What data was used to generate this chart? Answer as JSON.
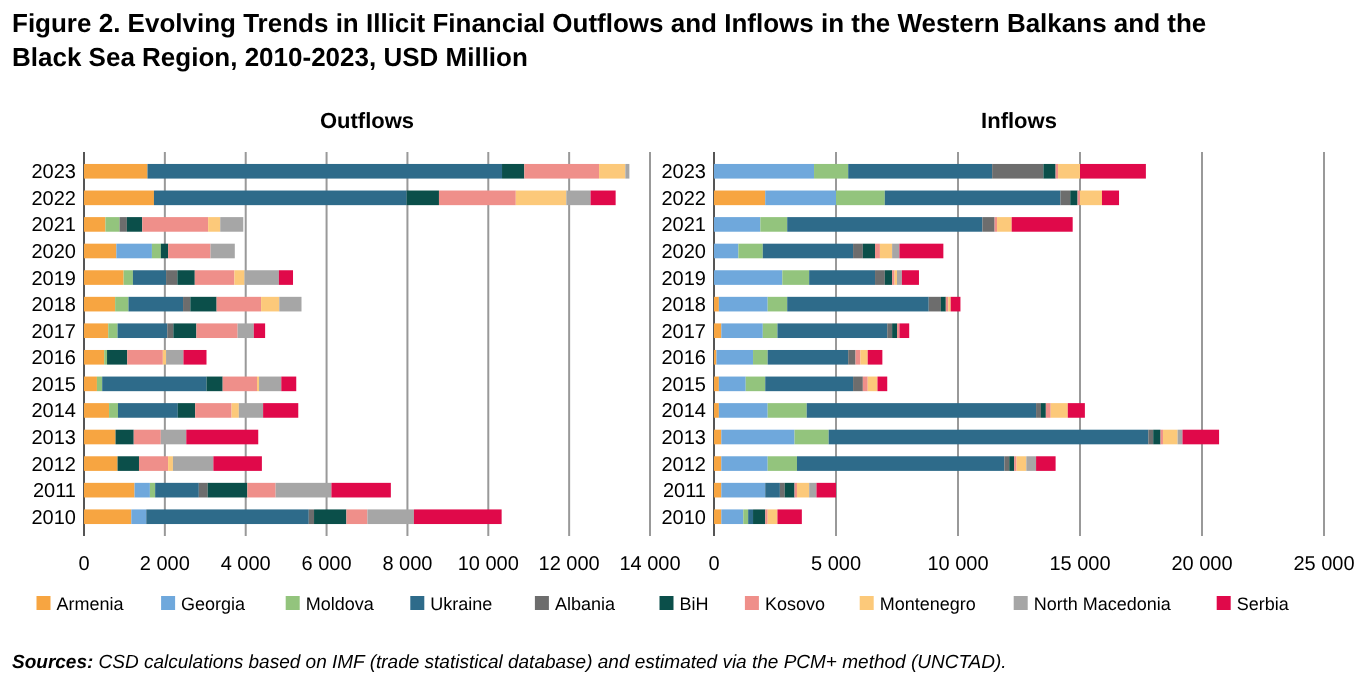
{
  "chart_data": [
    {
      "type": "bar",
      "orientation": "horizontal",
      "stacked": true,
      "title": "Figure 2.  Evolving Trends in Illicit Financial Outflows and Inflows in the Western Balkans and the Black Sea Region, 2010-2023, USD Million",
      "subtitle": "Outflows",
      "annotations": [
        "Sources: CSD calculations based on IMF (trade statistical database) and estimated via the PCM+ method (UNCTAD)."
      ],
      "legend": "bottom",
      "grid": "x",
      "categories": [
        "2023",
        "2022",
        "2021",
        "2020",
        "2019",
        "2018",
        "2017",
        "2016",
        "2015",
        "2014",
        "2013",
        "2012",
        "2011",
        "2010"
      ],
      "xlim": [
        0,
        14000
      ],
      "xticks": [
        0,
        {
          "value": 2000,
          "label": "2 000"
        },
        {
          "value": 4000,
          "label": "4 000"
        },
        {
          "value": 6000,
          "label": "6 000"
        },
        {
          "value": 8000,
          "label": "8 000"
        },
        {
          "value": 10000,
          "label": "10 000"
        },
        {
          "value": 12000,
          "label": "12 000"
        },
        {
          "value": 14000,
          "label": "14 000"
        }
      ],
      "series": [
        {
          "name": "Armenia",
          "color": "#f7a541",
          "values": [
            1570,
            1730,
            530,
            800,
            980,
            770,
            600,
            500,
            320,
            620,
            780,
            830,
            1250,
            1170
          ]
        },
        {
          "name": "Georgia",
          "color": "#6fa8dc",
          "values": [
            0,
            0,
            0,
            880,
            0,
            0,
            0,
            0,
            0,
            0,
            0,
            0,
            380,
            370
          ]
        },
        {
          "name": "Moldova",
          "color": "#93c47d",
          "values": [
            0,
            0,
            350,
            220,
            230,
            330,
            230,
            70,
            130,
            220,
            0,
            0,
            130,
            0
          ]
        },
        {
          "name": "Ukraine",
          "color": "#2e6b8a",
          "values": [
            8770,
            6250,
            0,
            0,
            820,
            1350,
            1230,
            0,
            2580,
            1480,
            0,
            0,
            1080,
            4020
          ]
        },
        {
          "name": "Albania",
          "color": "#6d6d6d",
          "values": [
            0,
            0,
            180,
            0,
            280,
            180,
            150,
            0,
            0,
            0,
            0,
            0,
            220,
            130
          ]
        },
        {
          "name": "BiH",
          "color": "#0b4f4a",
          "values": [
            550,
            800,
            380,
            180,
            430,
            650,
            570,
            500,
            400,
            430,
            450,
            530,
            980,
            800
          ]
        },
        {
          "name": "Kosovo",
          "color": "#ef8f8a",
          "values": [
            1850,
            1900,
            1630,
            1050,
            980,
            1100,
            1020,
            880,
            850,
            900,
            670,
            720,
            700,
            520
          ]
        },
        {
          "name": "Montenegro",
          "color": "#fcc97a",
          "values": [
            650,
            1250,
            300,
            0,
            250,
            450,
            0,
            80,
            50,
            180,
            0,
            120,
            0,
            0
          ]
        },
        {
          "name": "North Macedonia",
          "color": "#a6a6a6",
          "values": [
            100,
            600,
            570,
            600,
            850,
            550,
            400,
            430,
            550,
            600,
            630,
            1000,
            1380,
            1150
          ]
        },
        {
          "name": "Serbia",
          "color": "#e0094a",
          "values": [
            0,
            620,
            0,
            0,
            350,
            0,
            280,
            570,
            370,
            870,
            1780,
            1200,
            1470,
            2170
          ]
        }
      ]
    },
    {
      "type": "bar",
      "orientation": "horizontal",
      "stacked": true,
      "subtitle": "Inflows",
      "grid": "x",
      "categories": [
        "2023",
        "2022",
        "2021",
        "2020",
        "2019",
        "2018",
        "2017",
        "2016",
        "2015",
        "2014",
        "2013",
        "2012",
        "2011",
        "2010"
      ],
      "xlim": [
        0,
        25000
      ],
      "xticks": [
        0,
        {
          "value": 5000,
          "label": "5 000"
        },
        {
          "value": 10000,
          "label": "10 000"
        },
        {
          "value": 15000,
          "label": "15 000"
        },
        {
          "value": 20000,
          "label": "20 000"
        },
        {
          "value": 25000,
          "label": "25 000"
        }
      ],
      "series": [
        {
          "color": "#f7a541",
          "values": [
            0,
            2100,
            0,
            0,
            0,
            200,
            300,
            100,
            200,
            200,
            300,
            300,
            300,
            300
          ]
        },
        {
          "color": "#6fa8dc",
          "values": [
            4100,
            2900,
            1900,
            1000,
            2800,
            2000,
            1700,
            1500,
            1100,
            2000,
            3000,
            1900,
            1800,
            900
          ]
        },
        {
          "color": "#93c47d",
          "values": [
            1400,
            2000,
            1100,
            1000,
            1100,
            800,
            600,
            600,
            800,
            1600,
            1400,
            1200,
            0,
            200
          ]
        },
        {
          "color": "#2e6b8a",
          "values": [
            5900,
            7200,
            8000,
            3700,
            2700,
            5800,
            4500,
            3300,
            3600,
            9400,
            13100,
            8500,
            600,
            200
          ]
        },
        {
          "color": "#6d6d6d",
          "values": [
            2100,
            400,
            500,
            400,
            400,
            500,
            200,
            300,
            400,
            200,
            200,
            200,
            200,
            0
          ]
        },
        {
          "color": "#0b4f4a",
          "values": [
            500,
            300,
            0,
            500,
            300,
            200,
            200,
            0,
            0,
            200,
            300,
            200,
            400,
            500
          ]
        },
        {
          "color": "#ef8f8a",
          "values": [
            100,
            100,
            100,
            200,
            100,
            100,
            100,
            200,
            200,
            200,
            100,
            100,
            100,
            100
          ]
        },
        {
          "color": "#fcc97a",
          "values": [
            900,
            900,
            600,
            500,
            100,
            100,
            0,
            300,
            400,
            700,
            600,
            400,
            500,
            400
          ]
        },
        {
          "color": "#a6a6a6",
          "values": [
            0,
            0,
            0,
            300,
            200,
            null,
            0,
            0,
            0,
            0,
            200,
            400,
            300,
            null
          ]
        },
        {
          "color": "#e0094a",
          "values": [
            2700,
            700,
            2500,
            1800,
            700,
            400,
            400,
            600,
            400,
            700,
            1500,
            800,
            800,
            1000
          ]
        }
      ]
    }
  ]
}
